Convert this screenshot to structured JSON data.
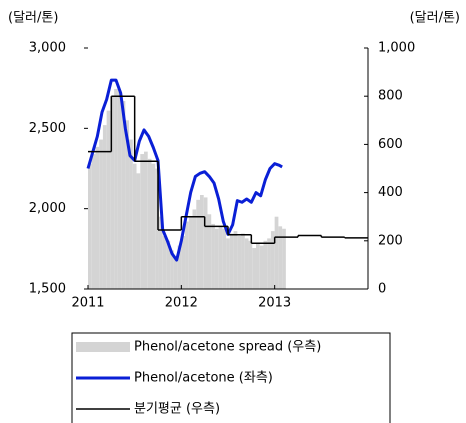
{
  "chart_data": {
    "type": "line",
    "ylabel": "(달러/톤)",
    "y2label": "(달러/톤)",
    "xlim": [
      2011,
      2014
    ],
    "xticks": [
      2011,
      2012,
      2013
    ],
    "ylim": [
      1500,
      3000
    ],
    "yticks": [
      {
        "value": 1500,
        "label": "1,500"
      },
      {
        "value": 2000,
        "label": "2,000"
      },
      {
        "value": 2500,
        "label": "2,500"
      },
      {
        "value": 3000,
        "label": "3,000"
      }
    ],
    "y2lim": [
      0,
      1000
    ],
    "y2ticks": [
      0,
      200,
      400,
      600,
      800,
      {
        "value": 1000,
        "label": "1,000"
      }
    ],
    "series": [
      {
        "name": "Phenol/acetone spread (우측)",
        "kind": "bar",
        "axis": "y2",
        "color": "#d4d4d4",
        "x": [
          2011.0,
          2011.04,
          2011.08,
          2011.12,
          2011.16,
          2011.2,
          2011.24,
          2011.28,
          2011.32,
          2011.36,
          2011.4,
          2011.44,
          2011.48,
          2011.52,
          2011.56,
          2011.6,
          2011.64,
          2011.68,
          2011.72,
          2011.76,
          2011.8,
          2011.84,
          2011.88,
          2011.92,
          2011.96,
          2012.0,
          2012.04,
          2012.08,
          2012.12,
          2012.16,
          2012.2,
          2012.24,
          2012.28,
          2012.32,
          2012.36,
          2012.4,
          2012.44,
          2012.48,
          2012.52,
          2012.56,
          2012.6,
          2012.64,
          2012.68,
          2012.72,
          2012.76,
          2012.8,
          2012.84,
          2012.88,
          2012.92,
          2012.96,
          2013.0,
          2013.04,
          2013.08
        ],
        "values": [
          520,
          560,
          590,
          620,
          680,
          740,
          800,
          830,
          820,
          780,
          700,
          620,
          520,
          480,
          560,
          570,
          540,
          520,
          500,
          300,
          220,
          200,
          160,
          130,
          180,
          220,
          280,
          300,
          330,
          370,
          390,
          380,
          310,
          270,
          250,
          260,
          250,
          210,
          230,
          240,
          220,
          230,
          210,
          200,
          170,
          190,
          180,
          200,
          210,
          240,
          300,
          260,
          250
        ]
      },
      {
        "name": "Phenol/acetone (좌측)",
        "kind": "line",
        "color": "#0a1fd6",
        "x": [
          2011.0,
          2011.05,
          2011.1,
          2011.15,
          2011.2,
          2011.25,
          2011.3,
          2011.35,
          2011.4,
          2011.45,
          2011.5,
          2011.55,
          2011.6,
          2011.65,
          2011.7,
          2011.75,
          2011.8,
          2011.85,
          2011.9,
          2011.95,
          2012.0,
          2012.05,
          2012.1,
          2012.15,
          2012.2,
          2012.25,
          2012.3,
          2012.35,
          2012.4,
          2012.45,
          2012.5,
          2012.55,
          2012.6,
          2012.65,
          2012.7,
          2012.75,
          2012.8,
          2012.85,
          2012.9,
          2012.95,
          2013.0,
          2013.05,
          2013.08
        ],
        "values": [
          2250,
          2350,
          2450,
          2600,
          2680,
          2800,
          2800,
          2720,
          2500,
          2330,
          2300,
          2420,
          2490,
          2450,
          2380,
          2300,
          1870,
          1800,
          1720,
          1680,
          1800,
          1950,
          2100,
          2200,
          2220,
          2230,
          2200,
          2160,
          2060,
          1920,
          1840,
          1900,
          2050,
          2040,
          2060,
          2040,
          2100,
          2080,
          2180,
          2250,
          2280,
          2270,
          2260
        ]
      },
      {
        "name": "분기평균 (우측)",
        "kind": "step",
        "axis": "y2",
        "color": "#000000",
        "x": [
          2011.0,
          2011.25,
          2011.5,
          2011.75,
          2012.0,
          2012.25,
          2012.5,
          2012.75,
          2013.0,
          2013.25,
          2013.5,
          2013.75
        ],
        "values": [
          570,
          800,
          530,
          245,
          300,
          260,
          225,
          190,
          215,
          222,
          215,
          212
        ]
      }
    ]
  }
}
